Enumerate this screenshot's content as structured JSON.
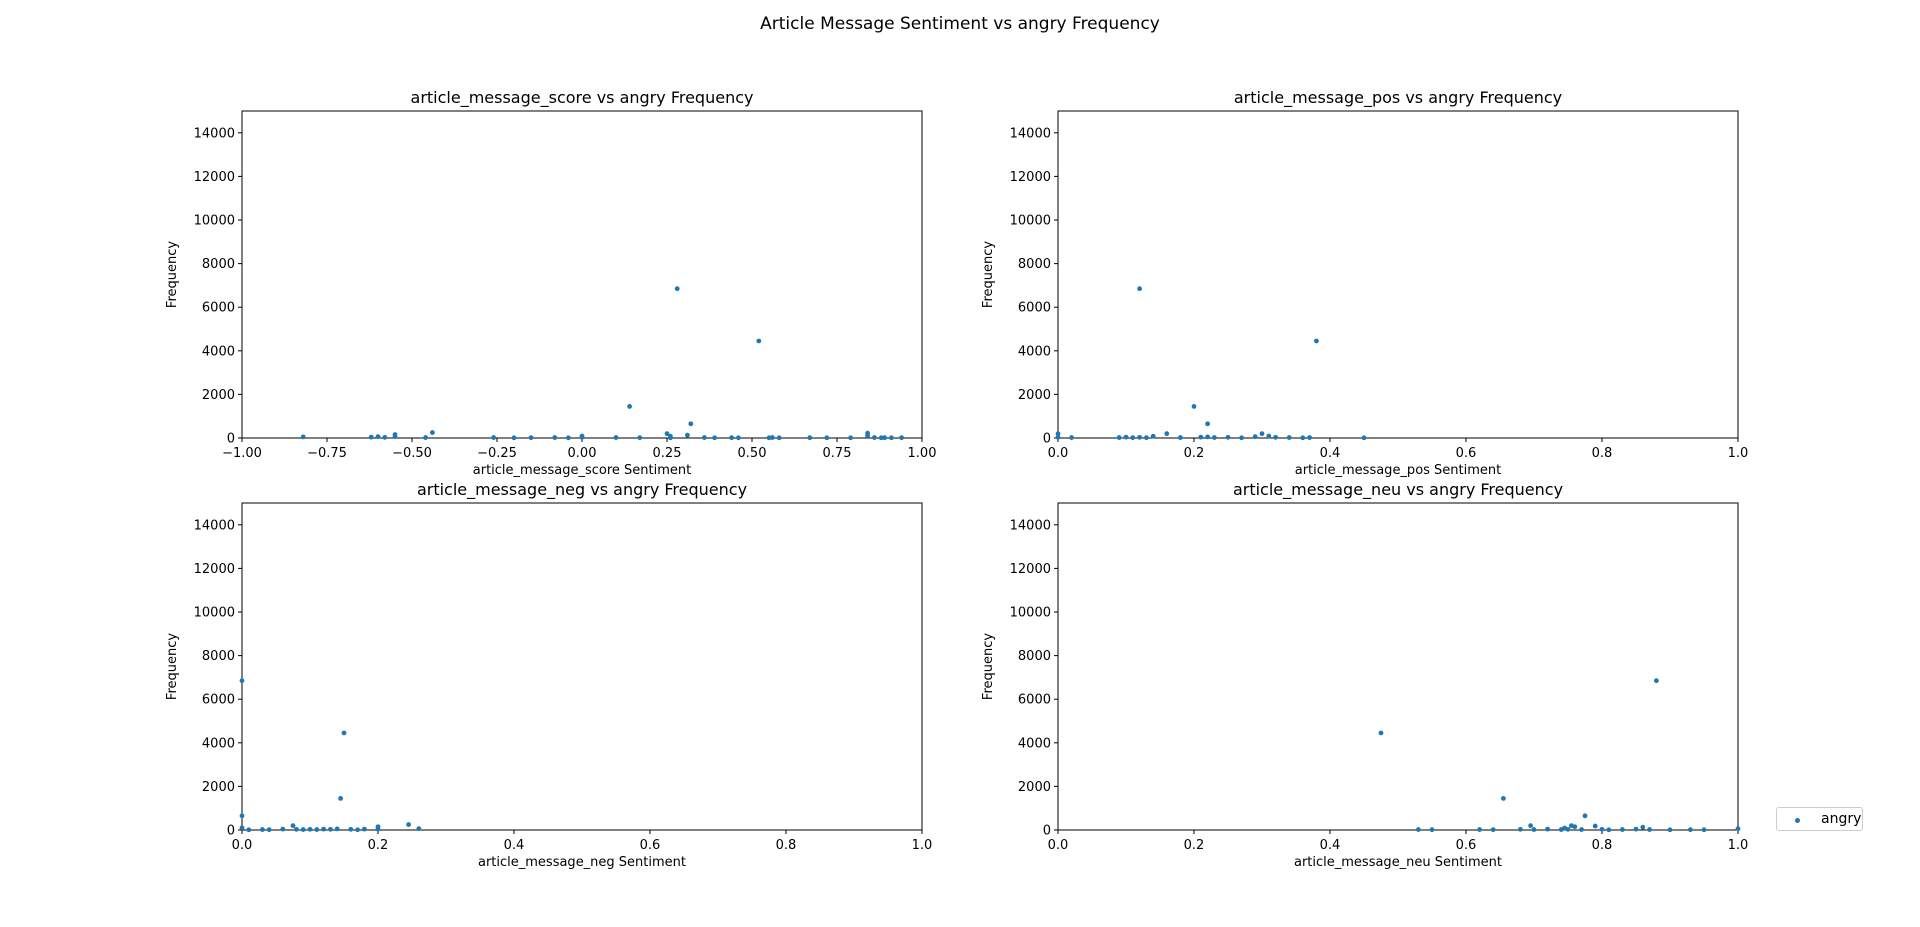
{
  "title": "Article Message Sentiment vs angry Frequency",
  "legend": {
    "label": "angry",
    "color": "#1f77b4"
  },
  "chart_data": [
    {
      "type": "scatter",
      "title": "article_message_score vs angry Frequency",
      "xlabel": "article_message_score Sentiment",
      "ylabel": "Frequency",
      "xlim": [
        -1.0,
        1.0
      ],
      "ylim": [
        0,
        15000
      ],
      "xticks": [
        -1.0,
        -0.75,
        -0.5,
        -0.25,
        0.0,
        0.25,
        0.5,
        0.75,
        1.0
      ],
      "xtick_labels": [
        "−1.00",
        "−0.75",
        "−0.50",
        "−0.25",
        "0.00",
        "0.25",
        "0.50",
        "0.75",
        "1.00"
      ],
      "yticks": [
        0,
        2000,
        4000,
        6000,
        8000,
        10000,
        12000,
        14000
      ],
      "series": [
        {
          "name": "angry",
          "x": [
            0.28,
            0.52,
            0.14,
            0.32,
            -0.44,
            0.25,
            0.26,
            0.84,
            0.84,
            -0.55,
            -0.55,
            -0.82,
            -0.62,
            -0.6,
            -0.58,
            -0.46,
            -0.26,
            -0.2,
            -0.15,
            -0.08,
            -0.04,
            0.0,
            0.0,
            0.1,
            0.17,
            0.26,
            0.31,
            0.36,
            0.39,
            0.44,
            0.46,
            0.55,
            0.56,
            0.58,
            0.67,
            0.72,
            0.79,
            0.86,
            0.88,
            0.89,
            0.91,
            0.94
          ],
          "y": [
            6850,
            4450,
            1450,
            650,
            250,
            200,
            80,
            220,
            100,
            160,
            60,
            50,
            40,
            60,
            30,
            20,
            20,
            10,
            15,
            20,
            10,
            90,
            30,
            20,
            15,
            10,
            130,
            20,
            10,
            15,
            10,
            10,
            20,
            10,
            15,
            10,
            10,
            20,
            10,
            15,
            10,
            15
          ]
        }
      ]
    },
    {
      "type": "scatter",
      "title": "article_message_pos vs angry Frequency",
      "xlabel": "article_message_pos Sentiment",
      "ylabel": "Frequency",
      "xlim": [
        0.0,
        1.0
      ],
      "ylim": [
        0,
        15000
      ],
      "xticks": [
        0.0,
        0.2,
        0.4,
        0.6,
        0.8,
        1.0
      ],
      "xtick_labels": [
        "0.0",
        "0.2",
        "0.4",
        "0.6",
        "0.8",
        "1.0"
      ],
      "yticks": [
        0,
        2000,
        4000,
        6000,
        8000,
        10000,
        12000,
        14000
      ],
      "series": [
        {
          "name": "angry",
          "x": [
            0.12,
            0.38,
            0.2,
            0.22,
            0.0,
            0.0,
            0.02,
            0.09,
            0.1,
            0.11,
            0.12,
            0.14,
            0.16,
            0.18,
            0.21,
            0.23,
            0.25,
            0.27,
            0.29,
            0.3,
            0.31,
            0.32,
            0.34,
            0.36,
            0.37,
            0.45,
            0.13,
            0.22
          ],
          "y": [
            6850,
            4450,
            1450,
            650,
            200,
            30,
            20,
            20,
            40,
            15,
            30,
            80,
            200,
            20,
            40,
            20,
            30,
            10,
            60,
            200,
            90,
            30,
            20,
            10,
            20,
            10,
            15,
            50
          ]
        }
      ]
    },
    {
      "type": "scatter",
      "title": "article_message_neg vs angry Frequency",
      "xlabel": "article_message_neg Sentiment",
      "ylabel": "Frequency",
      "xlim": [
        0.0,
        1.0
      ],
      "ylim": [
        0,
        15000
      ],
      "xticks": [
        0.0,
        0.2,
        0.4,
        0.6,
        0.8,
        1.0
      ],
      "xtick_labels": [
        "0.0",
        "0.2",
        "0.4",
        "0.6",
        "0.8",
        "1.0"
      ],
      "yticks": [
        0,
        2000,
        4000,
        6000,
        8000,
        10000,
        12000,
        14000
      ],
      "series": [
        {
          "name": "angry",
          "x": [
            0.0,
            0.15,
            0.145,
            0.0,
            0.0,
            0.245,
            0.2,
            0.26,
            0.075,
            0.03,
            0.04,
            0.06,
            0.08,
            0.09,
            0.1,
            0.11,
            0.12,
            0.13,
            0.14,
            0.16,
            0.17,
            0.18,
            0.2,
            0.01
          ],
          "y": [
            6850,
            4450,
            1450,
            650,
            100,
            250,
            150,
            60,
            200,
            20,
            15,
            40,
            30,
            20,
            30,
            20,
            40,
            30,
            50,
            30,
            10,
            40,
            40,
            10
          ]
        }
      ]
    },
    {
      "type": "scatter",
      "title": "article_message_neu vs angry Frequency",
      "xlabel": "article_message_neu Sentiment",
      "ylabel": "Frequency",
      "xlim": [
        0.0,
        1.0
      ],
      "ylim": [
        0,
        15000
      ],
      "xticks": [
        0.0,
        0.2,
        0.4,
        0.6,
        0.8,
        1.0
      ],
      "xtick_labels": [
        "0.0",
        "0.2",
        "0.4",
        "0.6",
        "0.8",
        "1.0"
      ],
      "yticks": [
        0,
        2000,
        4000,
        6000,
        8000,
        10000,
        12000,
        14000
      ],
      "series": [
        {
          "name": "angry",
          "x": [
            0.88,
            0.475,
            0.655,
            0.775,
            0.695,
            0.755,
            0.76,
            0.79,
            0.86,
            0.53,
            0.55,
            0.62,
            0.64,
            0.68,
            0.7,
            0.72,
            0.74,
            0.75,
            0.77,
            0.8,
            0.81,
            0.83,
            0.85,
            0.87,
            0.9,
            0.93,
            0.95,
            1.0,
            0.745
          ],
          "y": [
            6850,
            4450,
            1450,
            650,
            200,
            200,
            150,
            180,
            130,
            20,
            15,
            20,
            15,
            30,
            20,
            40,
            20,
            30,
            20,
            30,
            10,
            20,
            40,
            20,
            10,
            15,
            10,
            60,
            90
          ]
        }
      ]
    }
  ]
}
